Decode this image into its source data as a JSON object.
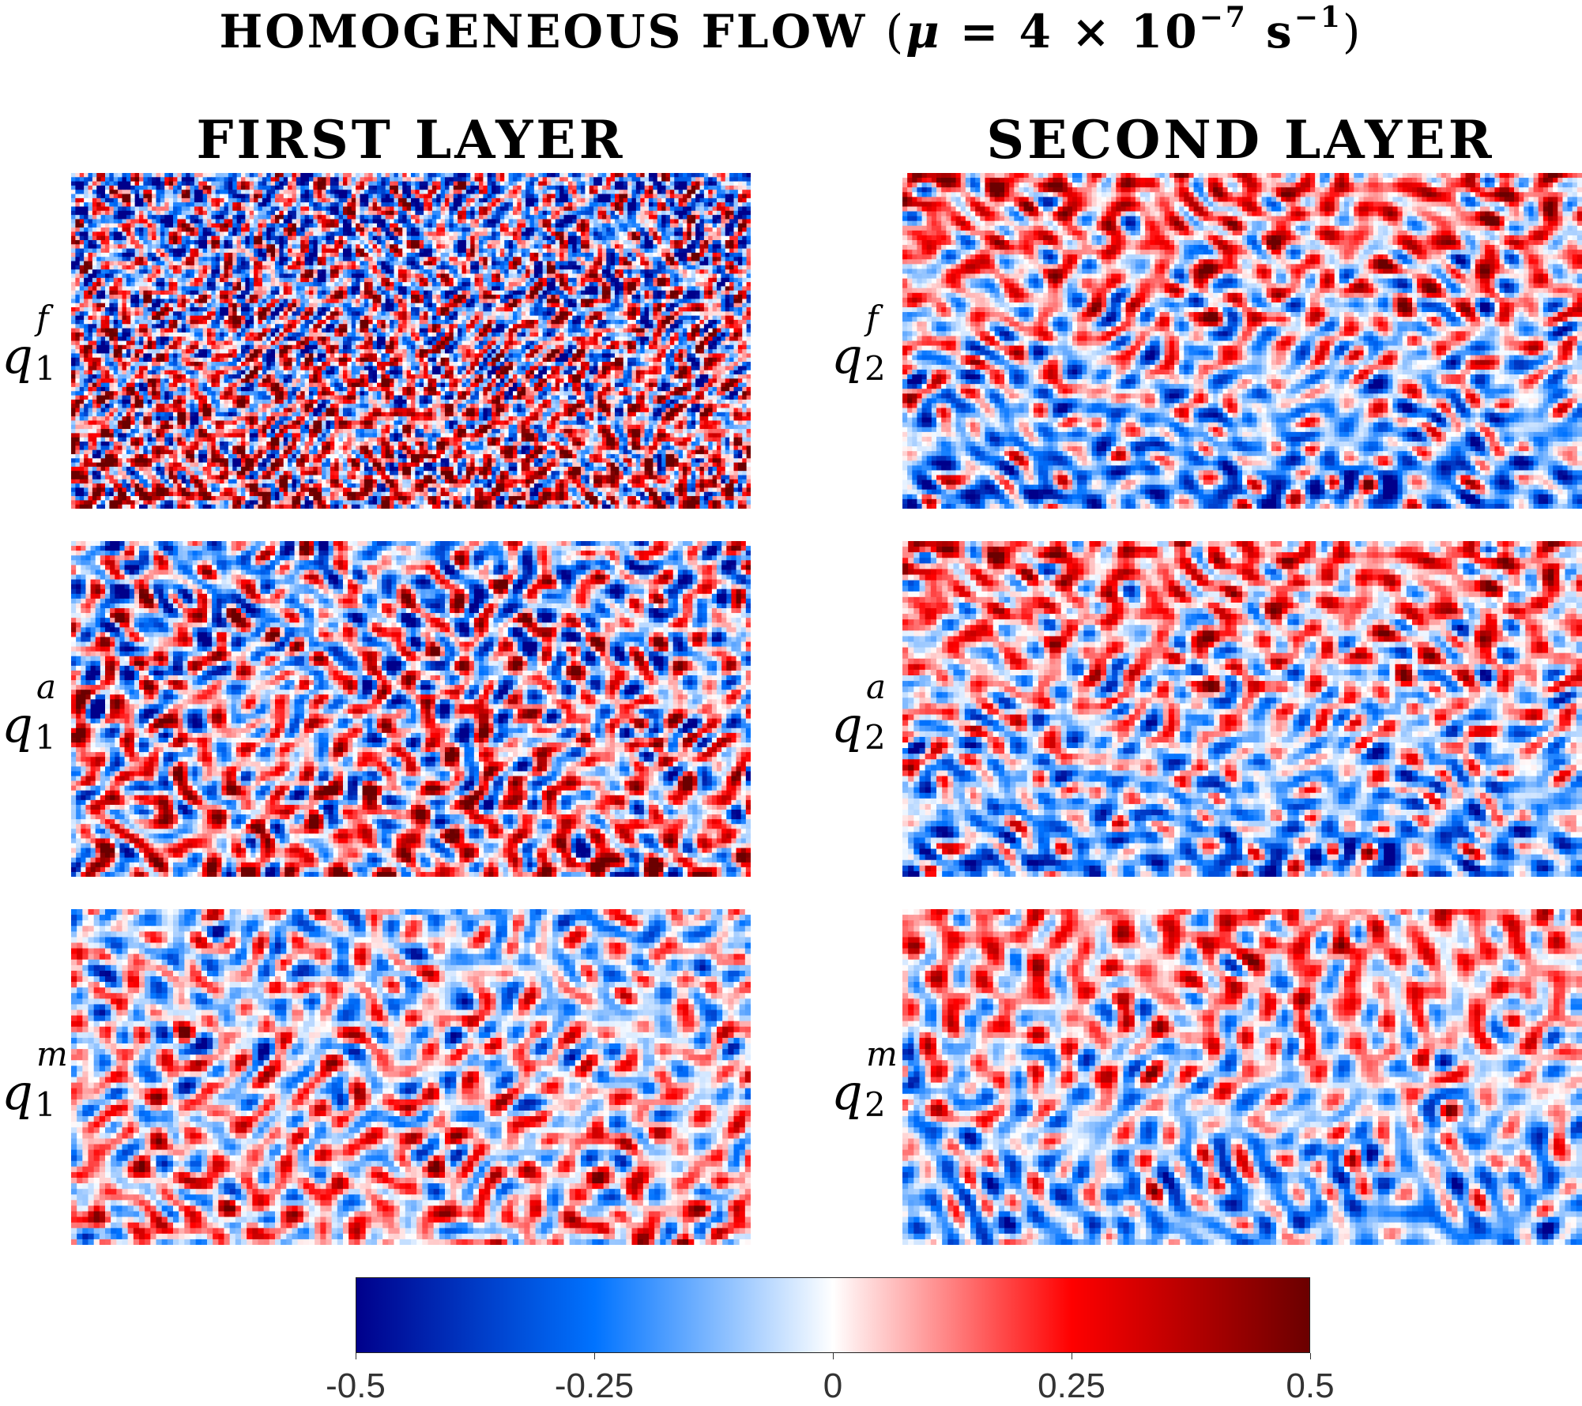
{
  "figure": {
    "title_main": "HOMOGENEOUS FLOW",
    "title_mu": "μ",
    "title_eq": "= 4 × 10",
    "title_exp": "−7",
    "title_unit": "s",
    "title_unit_exp": "−1",
    "col_left": "FIRST LAYER",
    "col_right": "SECOND LAYER"
  },
  "chart_data": {
    "type": "heatmap",
    "title": "HOMOGENEOUS FLOW (μ = 4 × 10^−7 s^−1)",
    "columns": [
      "FIRST LAYER",
      "SECOND LAYER"
    ],
    "rows": [
      {
        "symbol": "q",
        "superscript": "f"
      },
      {
        "symbol": "q",
        "superscript": "a"
      },
      {
        "symbol": "q",
        "superscript": "m"
      }
    ],
    "panels": [
      {
        "row": "f",
        "layer": 1,
        "label": "q1f"
      },
      {
        "row": "f",
        "layer": 2,
        "label": "q2f"
      },
      {
        "row": "a",
        "layer": 1,
        "label": "q1a"
      },
      {
        "row": "a",
        "layer": 2,
        "label": "q2a"
      },
      {
        "row": "m",
        "layer": 1,
        "label": "q1m"
      },
      {
        "row": "m",
        "layer": 2,
        "label": "q2m"
      }
    ],
    "colorbar": {
      "range": [
        -0.5,
        0.5
      ],
      "ticks": [
        -0.5,
        -0.25,
        0,
        0.25,
        0.5
      ],
      "tick_labels": [
        "-0.5",
        "-0.25",
        "0",
        "0.25",
        "0.5"
      ],
      "colormap": [
        "#00008b",
        "#0073ff",
        "#ffffff",
        "#ff0000",
        "#6b0000"
      ]
    }
  }
}
